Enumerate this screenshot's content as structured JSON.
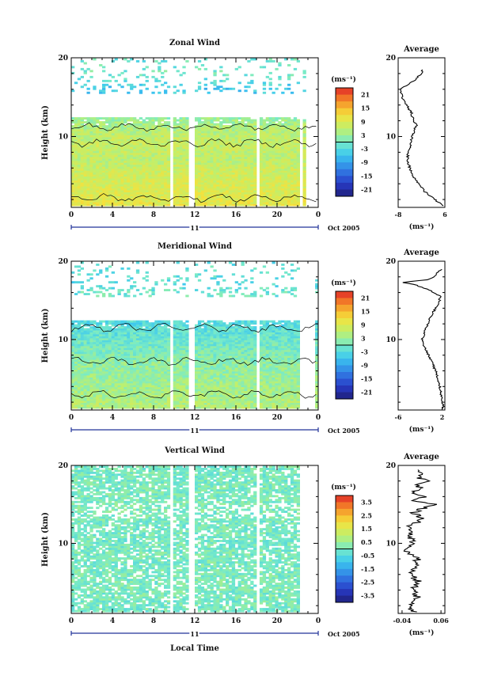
{
  "figure": {
    "x_axis_title": "Local Time",
    "date_label": "Oct 2005",
    "day_label": "11",
    "colorbar_unit": "(ms⁻¹)",
    "avg_unit": "(ms⁻¹)",
    "avg_title": "Average"
  },
  "chart_data": [
    {
      "type": "heatmap",
      "title": "Zonal Wind",
      "xlabel": "Local Time",
      "ylabel": "Height (km)",
      "xlim": [
        0,
        24
      ],
      "ylim": [
        1,
        20
      ],
      "x_ticks": [
        "0",
        "4",
        "8",
        "12",
        "16",
        "20",
        "0"
      ],
      "y_ticks": [
        "10",
        "20"
      ],
      "colorbar_ticks": [
        "21",
        "15",
        "9",
        "3",
        "-3",
        "-9",
        "-15",
        "-21"
      ],
      "colorbar_range": [
        -24,
        24
      ],
      "data_gaps_hours": [
        9.6,
        11.6,
        18.0,
        22.2,
        22.8
      ],
      "profile": [
        [
          1.5,
          10
        ],
        [
          3,
          9
        ],
        [
          5,
          8
        ],
        [
          7,
          6
        ],
        [
          9,
          7
        ],
        [
          11,
          5
        ],
        [
          12,
          3
        ],
        [
          13,
          1
        ],
        [
          14,
          -2
        ],
        [
          15,
          -4
        ],
        [
          16,
          -6
        ],
        [
          17,
          -2
        ],
        [
          18,
          0
        ],
        [
          19,
          -1
        ]
      ],
      "average": {
        "title": "Average",
        "xlabel": "(ms⁻¹)",
        "x_ticks": [
          "-8",
          "6"
        ],
        "xlim": [
          -8,
          6
        ],
        "y_ticks": [
          "10",
          "20"
        ],
        "profile": [
          [
            1.2,
            5.5
          ],
          [
            2,
            3
          ],
          [
            3,
            0
          ],
          [
            4,
            -2
          ],
          [
            5,
            -3.5
          ],
          [
            6,
            -4.5
          ],
          [
            7,
            -5.2
          ],
          [
            8,
            -5
          ],
          [
            9,
            -4.3
          ],
          [
            10,
            -3.8
          ],
          [
            11,
            -3
          ],
          [
            11.5,
            -2.2
          ],
          [
            12,
            -3.5
          ],
          [
            13,
            -4
          ],
          [
            14,
            -5.5
          ],
          [
            15,
            -6.8
          ],
          [
            16,
            -7.5
          ],
          [
            17,
            -3.5
          ],
          [
            17.8,
            -1.5
          ],
          [
            18.5,
            -0.5
          ]
        ]
      }
    },
    {
      "type": "heatmap",
      "title": "Meridional Wind",
      "xlabel": "Local Time",
      "ylabel": "Height (km)",
      "xlim": [
        0,
        24
      ],
      "ylim": [
        1,
        20
      ],
      "x_ticks": [
        "0",
        "4",
        "8",
        "12",
        "16",
        "20",
        "0"
      ],
      "y_ticks": [
        "10",
        "20"
      ],
      "colorbar_ticks": [
        "21",
        "15",
        "9",
        "3",
        "-3",
        "-9",
        "-15",
        "-21"
      ],
      "colorbar_range": [
        -24,
        24
      ],
      "data_gaps_hours": [
        9.6,
        11.6,
        18.0,
        22.2,
        22.8
      ],
      "profile": [
        [
          1.5,
          5
        ],
        [
          3,
          4
        ],
        [
          5,
          3
        ],
        [
          7,
          2
        ],
        [
          9,
          0
        ],
        [
          11,
          -2
        ],
        [
          12,
          -3
        ],
        [
          13,
          -2
        ],
        [
          14,
          -1
        ],
        [
          15,
          -1
        ],
        [
          16,
          -1
        ],
        [
          17,
          -3
        ],
        [
          18,
          -2
        ],
        [
          19,
          -2
        ]
      ],
      "average": {
        "title": "Average",
        "xlabel": "(ms⁻¹)",
        "x_ticks": [
          "-6",
          "2"
        ],
        "xlim": [
          -6,
          2.5
        ],
        "y_ticks": [
          "10",
          "20"
        ],
        "profile": [
          [
            1.2,
            2.2
          ],
          [
            2,
            2
          ],
          [
            3,
            1.8
          ],
          [
            4,
            1.6
          ],
          [
            5,
            1.2
          ],
          [
            6,
            0.8
          ],
          [
            7,
            0.2
          ],
          [
            8,
            -0.5
          ],
          [
            9,
            -1.2
          ],
          [
            10,
            -1.6
          ],
          [
            11,
            -1.2
          ],
          [
            12,
            -0.6
          ],
          [
            13,
            0
          ],
          [
            14,
            0.8
          ],
          [
            15,
            1.5
          ],
          [
            15.5,
            1.7
          ],
          [
            16,
            0.5
          ],
          [
            16.5,
            -1
          ],
          [
            17,
            -3
          ],
          [
            17.3,
            -5.2
          ],
          [
            17.6,
            -1
          ],
          [
            18,
            0.5
          ],
          [
            18.5,
            1
          ],
          [
            19,
            2
          ]
        ]
      }
    },
    {
      "type": "heatmap",
      "title": "Vertical Wind",
      "xlabel": "Local Time",
      "ylabel": "Height (km)",
      "xlim": [
        0,
        24
      ],
      "ylim": [
        1,
        20
      ],
      "x_ticks": [
        "0",
        "4",
        "8",
        "12",
        "16",
        "20",
        "0"
      ],
      "y_ticks": [
        "10",
        "20"
      ],
      "colorbar_ticks": [
        "3.5",
        "2.5",
        "1.5",
        "0.5",
        "-0.5",
        "-1.5",
        "-2.5",
        "-3.5"
      ],
      "colorbar_range": [
        -4,
        4
      ],
      "data_gaps_hours": [
        9.6,
        11.6,
        18.0,
        22.2,
        22.8
      ],
      "profile": [
        [
          1.5,
          0
        ],
        [
          5,
          0.1
        ],
        [
          10,
          0
        ],
        [
          15,
          0.1
        ],
        [
          19,
          0
        ]
      ],
      "average": {
        "title": "Average",
        "xlabel": "(ms⁻¹)",
        "x_ticks": [
          "-0.04",
          "0.06"
        ],
        "xlim": [
          -0.05,
          0.07
        ],
        "y_ticks": [
          "10",
          "20"
        ],
        "profile": [
          [
            1.2,
            -0.01
          ],
          [
            2,
            -0.02
          ],
          [
            3,
            0.0
          ],
          [
            4,
            -0.015
          ],
          [
            5,
            0.005
          ],
          [
            6,
            -0.02
          ],
          [
            7,
            -0.01
          ],
          [
            8,
            0.0
          ],
          [
            9,
            -0.03
          ],
          [
            10,
            -0.01
          ],
          [
            11,
            -0.02
          ],
          [
            12,
            -0.025
          ],
          [
            13,
            0.01
          ],
          [
            14,
            -0.01
          ],
          [
            15,
            0.04
          ],
          [
            15.5,
            -0.02
          ],
          [
            16,
            0.03
          ],
          [
            16.5,
            -0.02
          ],
          [
            17,
            0.02
          ],
          [
            17.5,
            -0.01
          ],
          [
            18,
            0.03
          ],
          [
            18.5,
            0.0
          ],
          [
            19,
            0.02
          ],
          [
            19.5,
            0.0
          ]
        ]
      }
    }
  ]
}
